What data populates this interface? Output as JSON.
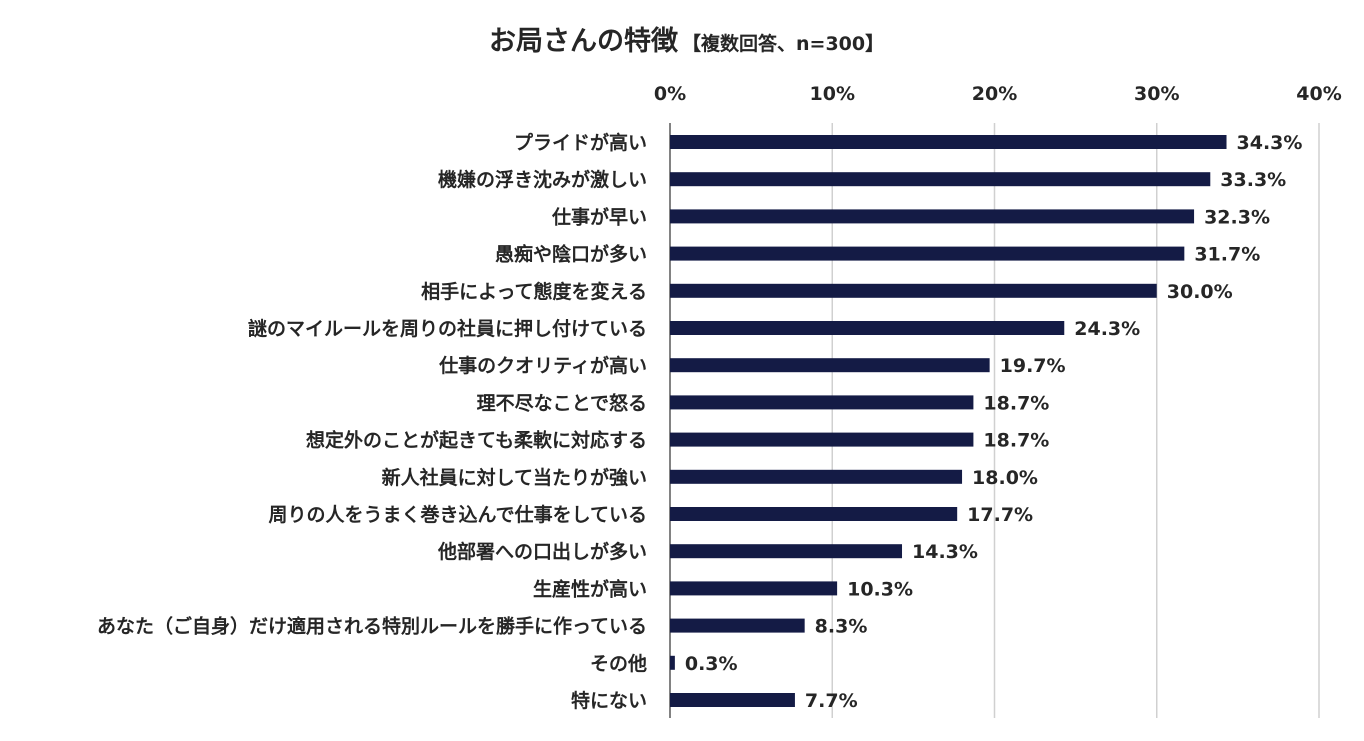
{
  "chart_data": {
    "type": "bar",
    "orientation": "horizontal",
    "title": "お局さんの特徴",
    "subtitle": "【複数回答、n=300】",
    "xlim": [
      0,
      40
    ],
    "tick_values": [
      0,
      10,
      20,
      30,
      40
    ],
    "tick_labels": [
      "0%",
      "10%",
      "20%",
      "30%",
      "40%"
    ],
    "x_axis_position": "top",
    "grid": true,
    "bar_color": "#141b45",
    "categories": [
      "プライドが高い",
      "機嫌の浮き沈みが激しい",
      "仕事が早い",
      "愚痴や陰口が多い",
      "相手によって態度を変える",
      "謎のマイルールを周りの社員に押し付けている",
      "仕事のクオリティが高い",
      "理不尽なことで怒る",
      "想定外のことが起きても柔軟に対応する",
      "新人社員に対して当たりが強い",
      "周りの人をうまく巻き込んで仕事をしている",
      "他部署への口出しが多い",
      "生産性が高い",
      "あなた（ご自身）だけ適用される特別ルールを勝手に作っている",
      "その他",
      "特にない"
    ],
    "values": [
      34.3,
      33.3,
      32.3,
      31.7,
      30.0,
      24.3,
      19.7,
      18.7,
      18.7,
      18.0,
      17.7,
      14.3,
      10.3,
      8.3,
      0.3,
      7.7
    ],
    "value_labels": [
      "34.3%",
      "33.3%",
      "32.3%",
      "31.7%",
      "30.0%",
      "24.3%",
      "19.7%",
      "18.7%",
      "18.7%",
      "18.0%",
      "17.7%",
      "14.3%",
      "10.3%",
      "8.3%",
      "0.3%",
      "7.7%"
    ]
  }
}
